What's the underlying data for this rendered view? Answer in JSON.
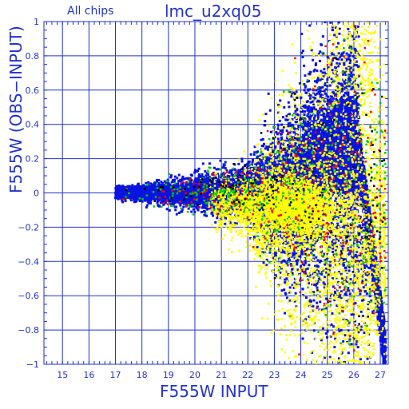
{
  "header": {
    "subset_label": "All chips",
    "title": "lmc_u2xq05"
  },
  "chart_data": {
    "type": "scatter",
    "title": "lmc_u2xq05",
    "xlabel": "F555W INPUT",
    "ylabel": "F555W (OBS−INPUT)",
    "xlim": [
      14.3,
      27.3
    ],
    "ylim": [
      -1,
      1
    ],
    "x_ticks": [
      15,
      16,
      17,
      18,
      19,
      20,
      21,
      22,
      23,
      24,
      25,
      26,
      27
    ],
    "y_ticks": [
      -1,
      -0.8,
      -0.6,
      -0.4,
      -0.2,
      0,
      0.2,
      0.4,
      0.6,
      0.8,
      1
    ],
    "x_tick_labels": [
      "15",
      "16",
      "17",
      "18",
      "19",
      "20",
      "21",
      "22",
      "23",
      "24",
      "25",
      "26",
      "27"
    ],
    "y_tick_labels": [
      "−1",
      "−0.8",
      "−0.6",
      "−0.4",
      "−0.2",
      "0",
      "0.2",
      "0.4",
      "0.6",
      "0.8",
      "1"
    ],
    "grid": true,
    "colors": {
      "blue": "#0a14e0",
      "yellow": "#ffff00",
      "red": "#ff0000",
      "green": "#00cc00",
      "black": "#000000",
      "axis": "#2233cc"
    },
    "distribution": {
      "x_min": 17.0,
      "x_max": 27.3,
      "core_spread_at_17": 0.02,
      "spread_at_22": 0.08,
      "spread_at_26": 0.6,
      "yellow_cloud_center": [
        23.9,
        -0.08
      ],
      "blue_upper_edge": [
        [
          17,
          0.04
        ],
        [
          22,
          0.1
        ],
        [
          24,
          0.25
        ],
        [
          25.8,
          0.6
        ],
        [
          26.3,
          0.4
        ],
        [
          27.3,
          -0.9
        ]
      ]
    }
  }
}
